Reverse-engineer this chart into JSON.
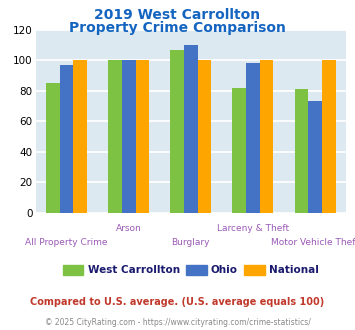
{
  "title_line1": "2019 West Carrollton",
  "title_line2": "Property Crime Comparison",
  "title_color": "#1565c0",
  "categories": [
    "All Property Crime",
    "Arson",
    "Burglary",
    "Larceny & Theft",
    "Motor Vehicle Theft"
  ],
  "series": {
    "West Carrollton": [
      85,
      100,
      107,
      82,
      81
    ],
    "Ohio": [
      97,
      100,
      110,
      98,
      73
    ],
    "National": [
      100,
      100,
      100,
      100,
      100
    ]
  },
  "colors": {
    "West Carrollton": "#7dc243",
    "Ohio": "#4472c4",
    "National": "#ffa500"
  },
  "ylim": [
    0,
    120
  ],
  "yticks": [
    0,
    20,
    40,
    60,
    80,
    100,
    120
  ],
  "background_color": "#dce9f0",
  "grid_color": "#ffffff",
  "top_labels": [
    "",
    "Arson",
    "",
    "Larceny & Theft",
    ""
  ],
  "bottom_labels": [
    "All Property Crime",
    "",
    "Burglary",
    "",
    "Motor Vehicle Theft"
  ],
  "footnote1": "Compared to U.S. average. (U.S. average equals 100)",
  "footnote2": "© 2025 CityRating.com - https://www.cityrating.com/crime-statistics/",
  "footnote1_color": "#c0392b",
  "footnote2_color": "#888888",
  "xlabel_color": "#9b59b6",
  "legend_text_color": "#1a1a6e"
}
